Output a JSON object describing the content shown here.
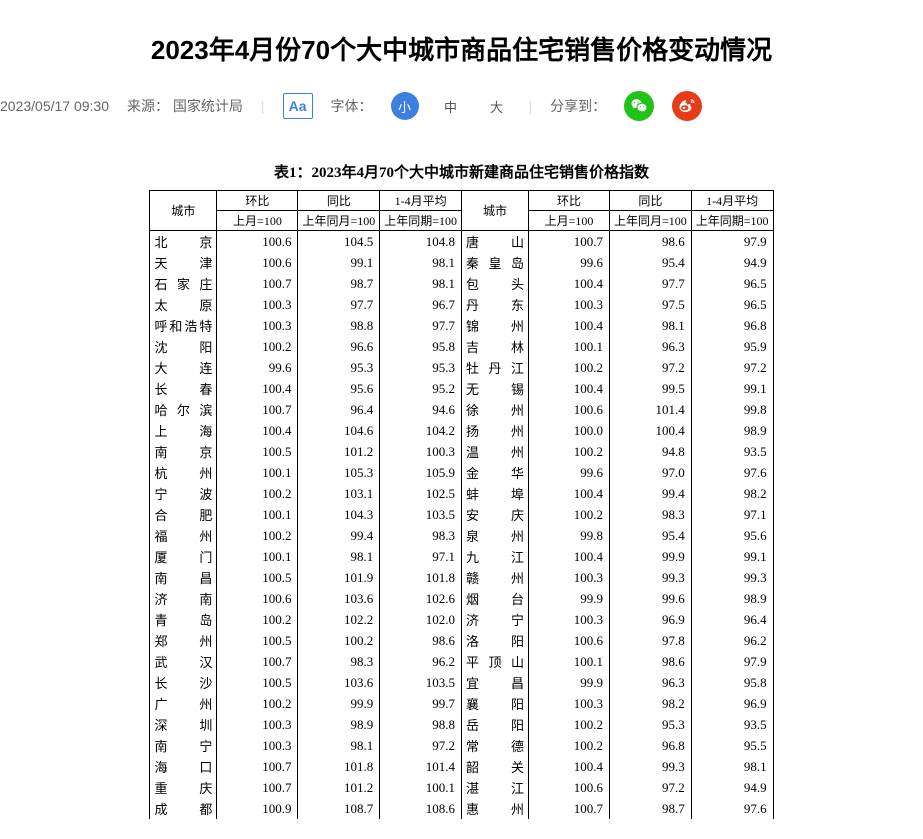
{
  "title": "2023年4月份70个大中城市商品住宅销售价格变动情况",
  "meta": {
    "datetime": "2023/05/17 09:30",
    "source_label": "来源：",
    "source": "国家统计局",
    "font_label": "字体：",
    "font_small": "小",
    "font_medium": "中",
    "font_large": "大",
    "share_label": "分享到："
  },
  "table_caption": "表1：2023年4月70个大中城市新建商品住宅销售价格指数",
  "headers": {
    "city": "城市",
    "mom": "环比",
    "mom_sub": "上月=100",
    "yoy": "同比",
    "yoy_sub": "上年同月=100",
    "avg": "1-4月平均",
    "avg_sub": "上年同期=100"
  },
  "left": [
    {
      "city": "北　京",
      "mom": "100.6",
      "yoy": "104.5",
      "avg": "104.8"
    },
    {
      "city": "天　津",
      "mom": "100.6",
      "yoy": "99.1",
      "avg": "98.1"
    },
    {
      "city": "石家庄",
      "mom": "100.7",
      "yoy": "98.7",
      "avg": "98.1"
    },
    {
      "city": "太　原",
      "mom": "100.3",
      "yoy": "97.7",
      "avg": "96.7"
    },
    {
      "city": "呼和浩特",
      "mom": "100.3",
      "yoy": "98.8",
      "avg": "97.7"
    },
    {
      "city": "沈　阳",
      "mom": "100.2",
      "yoy": "96.6",
      "avg": "95.8"
    },
    {
      "city": "大　连",
      "mom": "99.6",
      "yoy": "95.3",
      "avg": "95.3"
    },
    {
      "city": "长　春",
      "mom": "100.4",
      "yoy": "95.6",
      "avg": "95.2"
    },
    {
      "city": "哈尔滨",
      "mom": "100.7",
      "yoy": "96.4",
      "avg": "94.6"
    },
    {
      "city": "上　海",
      "mom": "100.4",
      "yoy": "104.6",
      "avg": "104.2"
    },
    {
      "city": "南　京",
      "mom": "100.5",
      "yoy": "101.2",
      "avg": "100.3"
    },
    {
      "city": "杭　州",
      "mom": "100.1",
      "yoy": "105.3",
      "avg": "105.9"
    },
    {
      "city": "宁　波",
      "mom": "100.2",
      "yoy": "103.1",
      "avg": "102.5"
    },
    {
      "city": "合　肥",
      "mom": "100.1",
      "yoy": "104.3",
      "avg": "103.5"
    },
    {
      "city": "福　州",
      "mom": "100.2",
      "yoy": "99.4",
      "avg": "98.3"
    },
    {
      "city": "厦　门",
      "mom": "100.1",
      "yoy": "98.1",
      "avg": "97.1"
    },
    {
      "city": "南　昌",
      "mom": "100.5",
      "yoy": "101.9",
      "avg": "101.8"
    },
    {
      "city": "济　南",
      "mom": "100.6",
      "yoy": "103.6",
      "avg": "102.6"
    },
    {
      "city": "青　岛",
      "mom": "100.2",
      "yoy": "102.2",
      "avg": "102.0"
    },
    {
      "city": "郑　州",
      "mom": "100.5",
      "yoy": "100.2",
      "avg": "98.6"
    },
    {
      "city": "武　汉",
      "mom": "100.7",
      "yoy": "98.3",
      "avg": "96.2"
    },
    {
      "city": "长　沙",
      "mom": "100.5",
      "yoy": "103.6",
      "avg": "103.5"
    },
    {
      "city": "广　州",
      "mom": "100.2",
      "yoy": "99.9",
      "avg": "99.7"
    },
    {
      "city": "深　圳",
      "mom": "100.3",
      "yoy": "98.9",
      "avg": "98.8"
    },
    {
      "city": "南　宁",
      "mom": "100.3",
      "yoy": "98.1",
      "avg": "97.2"
    },
    {
      "city": "海　口",
      "mom": "100.7",
      "yoy": "101.8",
      "avg": "101.4"
    },
    {
      "city": "重　庆",
      "mom": "100.7",
      "yoy": "101.2",
      "avg": "100.1"
    },
    {
      "city": "成　都",
      "mom": "100.9",
      "yoy": "108.7",
      "avg": "108.6"
    }
  ],
  "right": [
    {
      "city": "唐　山",
      "mom": "100.7",
      "yoy": "98.6",
      "avg": "97.9"
    },
    {
      "city": "秦皇岛",
      "mom": "99.6",
      "yoy": "95.4",
      "avg": "94.9"
    },
    {
      "city": "包　头",
      "mom": "100.4",
      "yoy": "97.7",
      "avg": "96.5"
    },
    {
      "city": "丹　东",
      "mom": "100.3",
      "yoy": "97.5",
      "avg": "96.5"
    },
    {
      "city": "锦　州",
      "mom": "100.4",
      "yoy": "98.1",
      "avg": "96.8"
    },
    {
      "city": "吉　林",
      "mom": "100.1",
      "yoy": "96.3",
      "avg": "95.9"
    },
    {
      "city": "牡丹江",
      "mom": "100.2",
      "yoy": "97.2",
      "avg": "97.2"
    },
    {
      "city": "无　锡",
      "mom": "100.4",
      "yoy": "99.5",
      "avg": "99.1"
    },
    {
      "city": "徐　州",
      "mom": "100.6",
      "yoy": "101.4",
      "avg": "99.8"
    },
    {
      "city": "扬　州",
      "mom": "100.0",
      "yoy": "100.4",
      "avg": "98.9"
    },
    {
      "city": "温　州",
      "mom": "100.2",
      "yoy": "94.8",
      "avg": "93.5"
    },
    {
      "city": "金　华",
      "mom": "99.6",
      "yoy": "97.0",
      "avg": "97.6"
    },
    {
      "city": "蚌　埠",
      "mom": "100.4",
      "yoy": "99.4",
      "avg": "98.2"
    },
    {
      "city": "安　庆",
      "mom": "100.2",
      "yoy": "98.3",
      "avg": "97.1"
    },
    {
      "city": "泉　州",
      "mom": "99.8",
      "yoy": "95.4",
      "avg": "95.6"
    },
    {
      "city": "九　江",
      "mom": "100.4",
      "yoy": "99.9",
      "avg": "99.1"
    },
    {
      "city": "赣　州",
      "mom": "100.3",
      "yoy": "99.3",
      "avg": "99.3"
    },
    {
      "city": "烟　台",
      "mom": "99.9",
      "yoy": "99.6",
      "avg": "98.9"
    },
    {
      "city": "济　宁",
      "mom": "100.3",
      "yoy": "96.9",
      "avg": "96.4"
    },
    {
      "city": "洛　阳",
      "mom": "100.6",
      "yoy": "97.8",
      "avg": "96.2"
    },
    {
      "city": "平顶山",
      "mom": "100.1",
      "yoy": "98.6",
      "avg": "97.9"
    },
    {
      "city": "宜　昌",
      "mom": "99.9",
      "yoy": "96.3",
      "avg": "95.8"
    },
    {
      "city": "襄　阳",
      "mom": "100.3",
      "yoy": "98.2",
      "avg": "96.9"
    },
    {
      "city": "岳　阳",
      "mom": "100.2",
      "yoy": "95.3",
      "avg": "93.5"
    },
    {
      "city": "常　德",
      "mom": "100.2",
      "yoy": "96.8",
      "avg": "95.5"
    },
    {
      "city": "韶　关",
      "mom": "100.4",
      "yoy": "99.3",
      "avg": "98.1"
    },
    {
      "city": "湛　江",
      "mom": "100.6",
      "yoy": "97.2",
      "avg": "94.9"
    },
    {
      "city": "惠　州",
      "mom": "100.7",
      "yoy": "98.7",
      "avg": "97.6"
    }
  ],
  "style": {
    "primary_blue": "#3b7fe0",
    "wechat_green": "#21c416",
    "weibo_red": "#e83b19",
    "border_color": "#000000",
    "font_family_body": "Microsoft YaHei, SimSun, Arial, sans-serif",
    "font_family_table": "SimSun, serif"
  }
}
